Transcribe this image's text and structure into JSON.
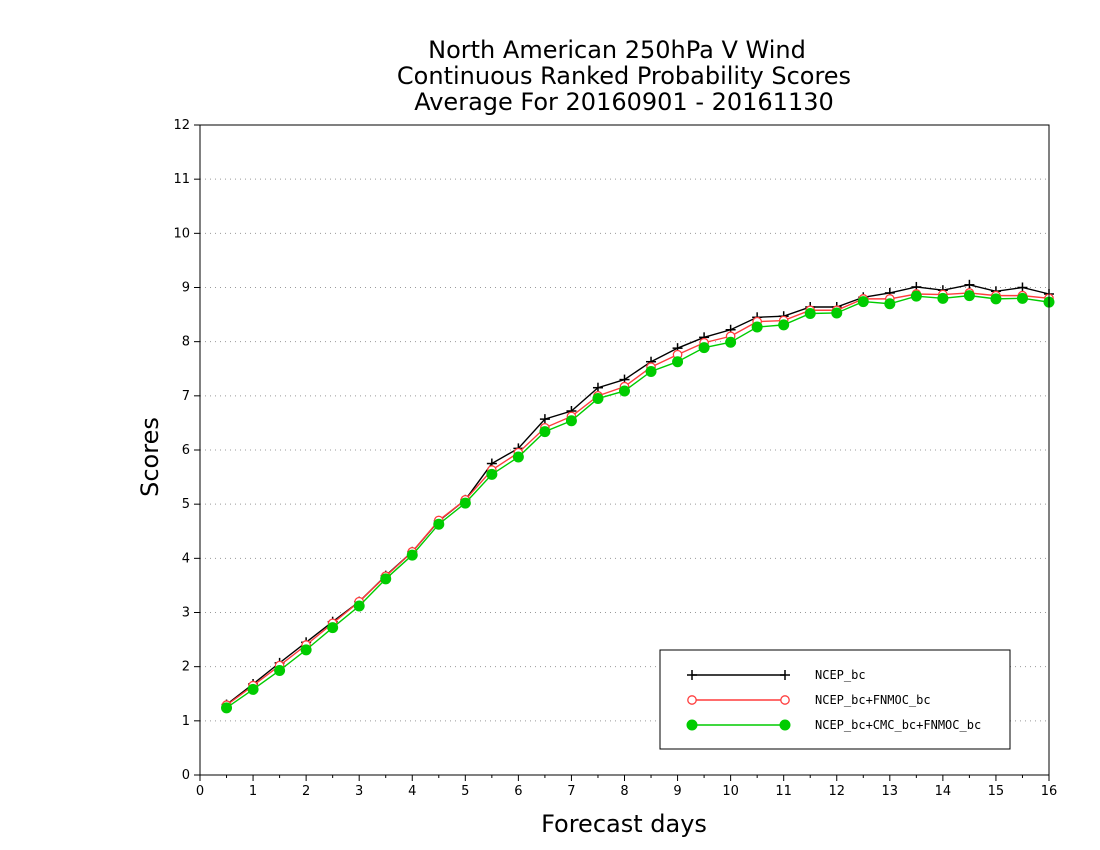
{
  "chart_data": {
    "type": "line",
    "title_lines": [
      "North American 250hPa V Wind",
      "Continuous Ranked Probability Scores",
      "Average For 20160901 - 20161130"
    ],
    "xlabel": "Forecast days",
    "ylabel": "Scores",
    "xlim": [
      0,
      16
    ],
    "ylim": [
      0,
      12
    ],
    "x_ticks": [
      0,
      1,
      2,
      3,
      4,
      5,
      6,
      7,
      8,
      9,
      10,
      11,
      12,
      13,
      14,
      15,
      16
    ],
    "y_ticks": [
      0,
      1,
      2,
      3,
      4,
      5,
      6,
      7,
      8,
      9,
      10,
      11,
      12
    ],
    "grid": "horizontal dotted",
    "legend_position": "bottom-right",
    "x": [
      0.5,
      1,
      1.5,
      2,
      2.5,
      3,
      3.5,
      4,
      4.5,
      5,
      5.5,
      6,
      6.5,
      7,
      7.5,
      8,
      8.5,
      9,
      9.5,
      10,
      10.5,
      11,
      11.5,
      12,
      12.5,
      13,
      13.5,
      14,
      14.5,
      15,
      15.5,
      16
    ],
    "series": [
      {
        "name": "NCEP_bc",
        "color": "#000000",
        "marker": "plus",
        "values": [
          1.3,
          1.68,
          2.07,
          2.45,
          2.83,
          3.2,
          3.68,
          4.12,
          4.69,
          5.08,
          5.75,
          6.03,
          6.57,
          6.72,
          7.15,
          7.3,
          7.63,
          7.88,
          8.08,
          8.22,
          8.45,
          8.47,
          8.64,
          8.64,
          8.82,
          8.9,
          9.01,
          8.95,
          9.05,
          8.93,
          9.0,
          8.88
        ]
      },
      {
        "name": "NCEP_bc+FNMOC_bc",
        "color": "#ff3c3c",
        "marker": "open-circle",
        "values": [
          1.29,
          1.65,
          2.02,
          2.4,
          2.8,
          3.2,
          3.67,
          4.12,
          4.7,
          5.08,
          5.63,
          5.95,
          6.41,
          6.62,
          7.0,
          7.17,
          7.53,
          7.76,
          7.98,
          8.1,
          8.37,
          8.39,
          8.58,
          8.58,
          8.79,
          8.79,
          8.88,
          8.87,
          8.9,
          8.85,
          8.85,
          8.8
        ]
      },
      {
        "name": "NCEP_bc+CMC_bc+FNMOC_bc",
        "color": "#00cc00",
        "marker": "filled-circle",
        "values": [
          1.24,
          1.58,
          1.93,
          2.31,
          2.72,
          3.12,
          3.62,
          4.06,
          4.63,
          5.02,
          5.55,
          5.87,
          6.34,
          6.54,
          6.95,
          7.09,
          7.45,
          7.63,
          7.89,
          7.99,
          8.27,
          8.31,
          8.52,
          8.53,
          8.74,
          8.7,
          8.84,
          8.8,
          8.85,
          8.79,
          8.8,
          8.73
        ]
      }
    ]
  }
}
